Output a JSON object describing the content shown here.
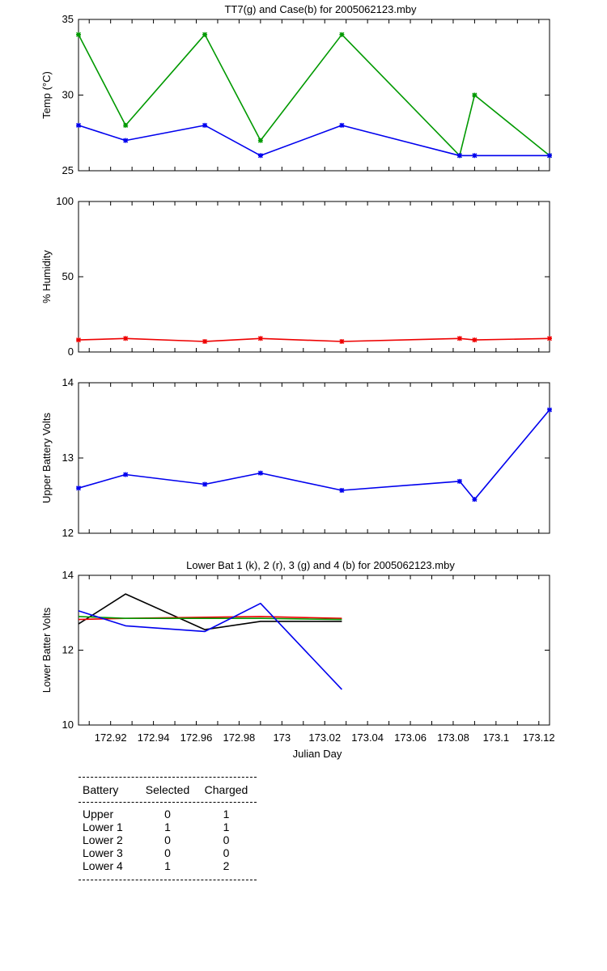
{
  "chart_data": [
    {
      "type": "line",
      "title": "TT7(g) and Case(b) for 2005062123.mby",
      "xlabel": "",
      "ylabel": "Temp  (°C)",
      "xlim": [
        172.905,
        173.125
      ],
      "ylim": [
        25,
        35
      ],
      "yticks": [
        "25",
        "30",
        "35"
      ],
      "grid": false,
      "series": [
        {
          "color": "#009900",
          "marker": true,
          "x": [
            172.905,
            172.927,
            172.964,
            172.99,
            173.028,
            173.083,
            173.09,
            173.125
          ],
          "y": [
            34,
            28,
            34,
            27,
            34,
            26,
            30,
            26
          ]
        },
        {
          "color": "#0000ee",
          "marker": true,
          "x": [
            172.905,
            172.927,
            172.964,
            172.99,
            173.028,
            173.083,
            173.09,
            173.125
          ],
          "y": [
            28,
            27,
            28,
            26,
            28,
            26,
            26,
            26
          ]
        }
      ]
    },
    {
      "type": "line",
      "title": "",
      "xlabel": "",
      "ylabel": "% Humidity",
      "xlim": [
        172.905,
        173.125
      ],
      "ylim": [
        0,
        100
      ],
      "yticks": [
        "0",
        "50",
        "100"
      ],
      "grid": false,
      "series": [
        {
          "color": "#ee0000",
          "marker": true,
          "x": [
            172.905,
            172.927,
            172.964,
            172.99,
            173.028,
            173.083,
            173.09,
            173.125
          ],
          "y": [
            8,
            9,
            7,
            9,
            7,
            9,
            8,
            9
          ]
        }
      ]
    },
    {
      "type": "line",
      "title": "",
      "xlabel": "",
      "ylabel": "Upper Battery Volts",
      "xlim": [
        172.905,
        173.125
      ],
      "ylim": [
        12,
        14
      ],
      "yticks": [
        "12",
        "13",
        "14"
      ],
      "grid": false,
      "series": [
        {
          "color": "#0000ee",
          "marker": true,
          "x": [
            172.905,
            172.927,
            172.964,
            172.99,
            173.028,
            173.083,
            173.09,
            173.125
          ],
          "y": [
            12.6,
            12.78,
            12.65,
            12.8,
            12.57,
            12.69,
            12.45,
            13.64
          ]
        }
      ]
    },
    {
      "type": "line",
      "title": "Lower Bat 1 (k), 2 (r), 3 (g) and 4 (b) for 2005062123.mby",
      "xlabel": "Julian Day",
      "ylabel": "Lower Batter Volts",
      "xlim": [
        172.905,
        173.125
      ],
      "ylim": [
        10,
        14
      ],
      "yticks": [
        "10",
        "12",
        "14"
      ],
      "xticks": [
        "172.92",
        "172.94",
        "172.96",
        "172.98",
        "173",
        "173.02",
        "173.04",
        "173.06",
        "173.08",
        "173.1",
        "173.12"
      ],
      "grid": false,
      "series": [
        {
          "color": "#000000",
          "marker": false,
          "x": [
            172.905,
            172.927,
            172.964,
            172.99,
            173.028
          ],
          "y": [
            12.7,
            13.5,
            12.55,
            12.77,
            12.77
          ]
        },
        {
          "color": "#ee0000",
          "marker": false,
          "x": [
            172.905,
            172.927,
            172.964,
            172.99,
            173.028
          ],
          "y": [
            12.82,
            12.85,
            12.88,
            12.9,
            12.85
          ]
        },
        {
          "color": "#009900",
          "marker": false,
          "x": [
            172.905,
            172.927,
            172.964,
            172.99,
            173.028
          ],
          "y": [
            12.9,
            12.85,
            12.85,
            12.85,
            12.82
          ]
        },
        {
          "color": "#0000ee",
          "marker": false,
          "x": [
            172.905,
            172.927,
            172.964,
            172.99,
            173.028
          ],
          "y": [
            13.05,
            12.65,
            12.5,
            13.25,
            10.95
          ]
        }
      ]
    }
  ],
  "battery_table": {
    "headers": [
      "Battery",
      "Selected",
      "Charged"
    ],
    "rows": [
      [
        "Upper",
        "0",
        "1"
      ],
      [
        "Lower 1",
        "1",
        "1"
      ],
      [
        "Lower 2",
        "0",
        "0"
      ],
      [
        "Lower 3",
        "0",
        "0"
      ],
      [
        "Lower 4",
        "1",
        "2"
      ]
    ]
  }
}
